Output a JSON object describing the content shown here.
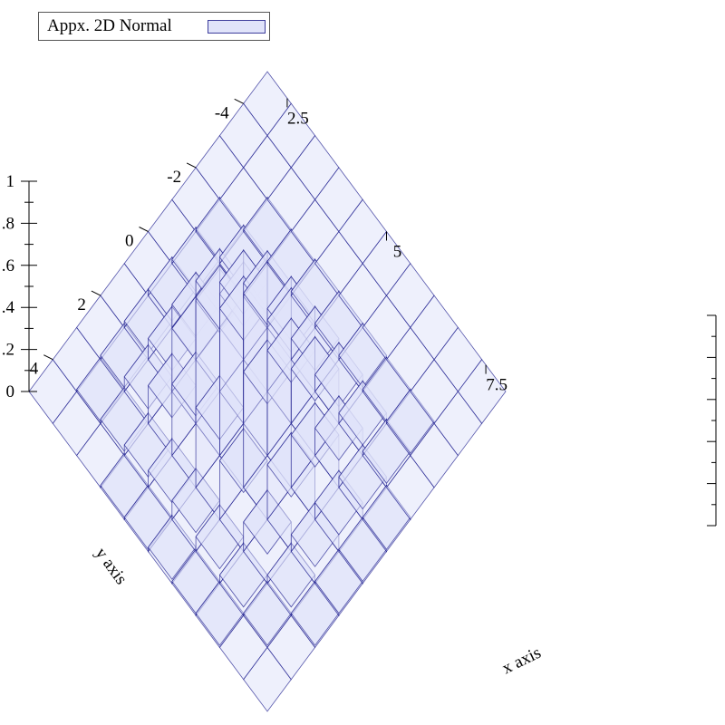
{
  "legend": {
    "label": "Appx. 2D Normal",
    "swatch_fill": "#e0e3fa",
    "swatch_stroke": "#3c3c9c"
  },
  "colors": {
    "bar_fill": "#e0e3fa",
    "bar_stroke": "#1f1f8f"
  },
  "chart_data": {
    "type": "3d-histogram",
    "title": "",
    "xlabel": "x axis",
    "ylabel": "y axis",
    "zlabel": "",
    "xlim": [
      2,
      8
    ],
    "ylim": [
      -5,
      5
    ],
    "zlim": [
      0,
      1
    ],
    "x_ticks": [
      "2.5",
      "5",
      "7.5"
    ],
    "y_ticks": [
      "-4",
      "-2",
      "0",
      "2",
      "4"
    ],
    "z_ticks": [
      "0",
      ".2",
      ".4",
      ".6",
      ".8",
      "1"
    ],
    "grid": false,
    "legend_position": "top-left",
    "x_bins": [
      2.0,
      2.6,
      3.2,
      3.8,
      4.4,
      5.0,
      5.6,
      6.2,
      6.8,
      7.4,
      8.0
    ],
    "y_bins": [
      -5,
      -4,
      -3,
      -2,
      -1,
      0,
      1,
      2,
      3,
      4,
      5
    ],
    "heights": [
      [
        0.0,
        0.0,
        0.0,
        0.0,
        0.0,
        0.0,
        0.0,
        0.0,
        0.0,
        0.0
      ],
      [
        0.0,
        0.0,
        0.0,
        0.0,
        0.0,
        0.0,
        0.0,
        0.0,
        0.0,
        0.0
      ],
      [
        0.0,
        0.0,
        0.01,
        0.01,
        0.02,
        0.02,
        0.02,
        0.01,
        0.01,
        0.0
      ],
      [
        0.0,
        0.01,
        0.03,
        0.06,
        0.09,
        0.1,
        0.08,
        0.05,
        0.02,
        0.0
      ],
      [
        0.0,
        0.02,
        0.07,
        0.16,
        0.3,
        0.34,
        0.26,
        0.13,
        0.05,
        0.01
      ],
      [
        0.0,
        0.03,
        0.11,
        0.28,
        0.52,
        0.62,
        0.5,
        0.25,
        0.08,
        0.01
      ],
      [
        0.0,
        0.03,
        0.1,
        0.3,
        0.6,
        0.7,
        0.55,
        0.26,
        0.08,
        0.01
      ],
      [
        0.0,
        0.02,
        0.07,
        0.18,
        0.34,
        0.38,
        0.28,
        0.14,
        0.04,
        0.01
      ],
      [
        0.0,
        0.01,
        0.02,
        0.05,
        0.08,
        0.09,
        0.07,
        0.04,
        0.01,
        0.0
      ],
      [
        0.0,
        0.0,
        0.0,
        0.01,
        0.01,
        0.02,
        0.01,
        0.01,
        0.0,
        0.0
      ]
    ]
  }
}
